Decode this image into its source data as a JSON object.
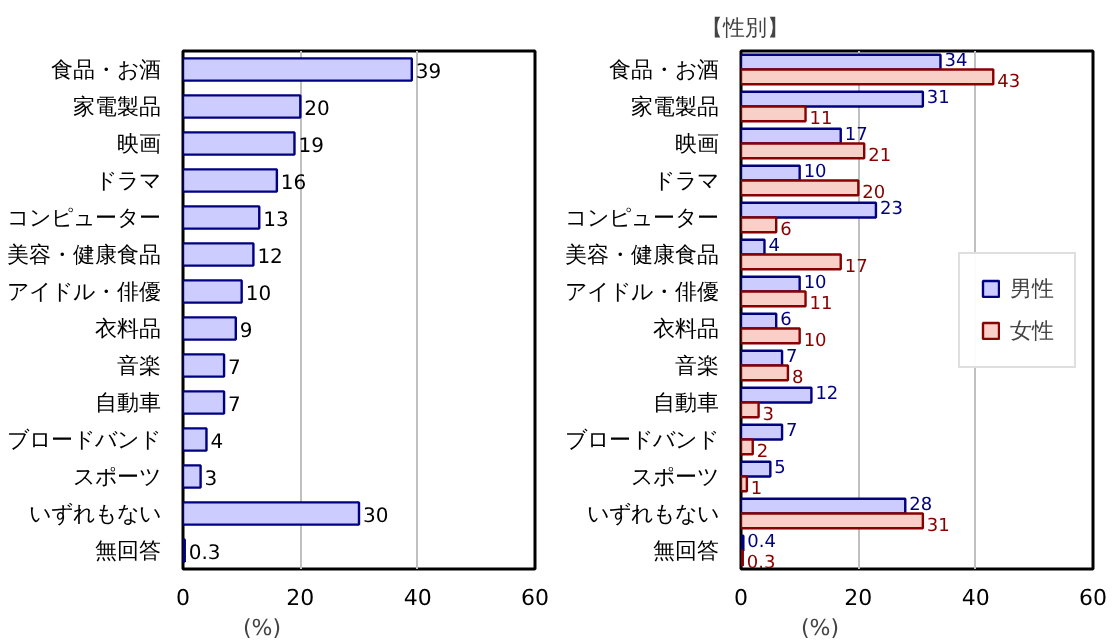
{
  "chart_data": [
    {
      "type": "bar",
      "orientation": "horizontal",
      "categories": [
        "食品・お酒",
        "家電製品",
        "映画",
        "ドラマ",
        "コンピューター",
        "美容・健康食品",
        "アイドル・俳優",
        "衣料品",
        "音楽",
        "自動車",
        "ブロードバンド",
        "スポーツ",
        "いずれもない",
        "無回答"
      ],
      "series": [
        {
          "color": "#ccccff",
          "values": [
            39,
            20,
            19,
            16,
            13,
            12,
            10,
            9,
            7,
            7,
            4,
            3,
            30,
            0.3
          ]
        }
      ],
      "xlim": [
        0,
        60
      ],
      "xticks": [
        0,
        20,
        40,
        60
      ],
      "grid": "x",
      "data_labels": true,
      "legend": false,
      "annotations": [
        "(%)"
      ]
    },
    {
      "type": "bar",
      "orientation": "horizontal",
      "title": "【性別】",
      "categories": [
        "食品・お酒",
        "家電製品",
        "映画",
        "ドラマ",
        "コンピューター",
        "美容・健康食品",
        "アイドル・俳優",
        "衣料品",
        "音楽",
        "自動車",
        "ブロードバンド",
        "スポーツ",
        "いずれもない",
        "無回答"
      ],
      "series": [
        {
          "name": "男性",
          "color": "#ccccff",
          "values": [
            34,
            31,
            17,
            10,
            23,
            4,
            10,
            6,
            7,
            12,
            7,
            5,
            28,
            0.4
          ]
        },
        {
          "name": "女性",
          "color": "#f8d0c8",
          "values": [
            43,
            11,
            21,
            20,
            6,
            17,
            11,
            10,
            8,
            3,
            2,
            1,
            31,
            0.3
          ]
        }
      ],
      "xlim": [
        0,
        60
      ],
      "xticks": [
        0,
        20,
        40,
        60
      ],
      "grid": "x",
      "data_labels": true,
      "legend": "right",
      "annotations": [
        "(%)"
      ]
    }
  ]
}
